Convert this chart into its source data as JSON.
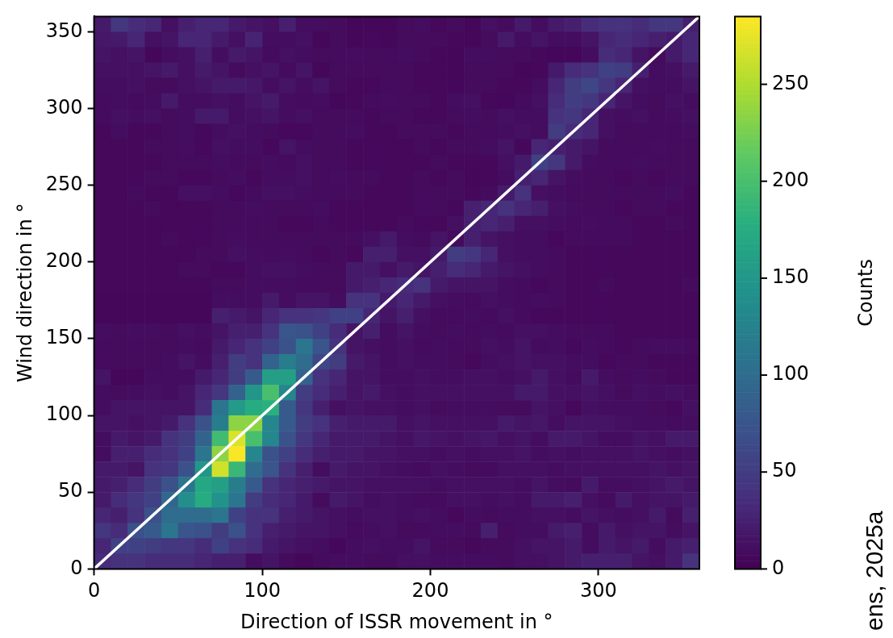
{
  "chart_data": {
    "type": "heatmap",
    "xlabel": "Direction of ISSR movement in °",
    "ylabel": "Wind direction in °",
    "clabel": "Counts",
    "xlim": [
      0,
      360
    ],
    "ylim": [
      0,
      360
    ],
    "xticks": [
      0,
      100,
      200,
      300
    ],
    "yticks": [
      0,
      50,
      100,
      150,
      200,
      250,
      300,
      350
    ],
    "clim": [
      0,
      285
    ],
    "cticks": [
      0,
      50,
      100,
      150,
      200,
      250
    ],
    "cells": [
      [
        20,
        45,
        35,
        30,
        12,
        25,
        30,
        30,
        20,
        15,
        12,
        25,
        10,
        10,
        8,
        5,
        5,
        5,
        8,
        10,
        6,
        8,
        5,
        12,
        8,
        20,
        10,
        20,
        25,
        35,
        40,
        40,
        35,
        45,
        45,
        25
      ],
      [
        18,
        20,
        30,
        12,
        15,
        30,
        30,
        20,
        12,
        28,
        10,
        10,
        12,
        5,
        8,
        5,
        6,
        5,
        8,
        8,
        8,
        6,
        5,
        8,
        20,
        10,
        15,
        10,
        10,
        15,
        30,
        35,
        30,
        25,
        20,
        30
      ],
      [
        15,
        12,
        15,
        5,
        10,
        12,
        25,
        10,
        20,
        15,
        8,
        12,
        10,
        8,
        8,
        10,
        8,
        8,
        10,
        8,
        6,
        5,
        10,
        10,
        8,
        8,
        6,
        5,
        5,
        10,
        35,
        30,
        15,
        8,
        20,
        30
      ],
      [
        12,
        12,
        12,
        15,
        20,
        12,
        20,
        15,
        8,
        12,
        15,
        8,
        15,
        5,
        8,
        8,
        8,
        8,
        8,
        6,
        6,
        5,
        8,
        8,
        8,
        5,
        6,
        20,
        35,
        40,
        55,
        50,
        25,
        10,
        12,
        20
      ],
      [
        10,
        10,
        12,
        8,
        8,
        12,
        15,
        20,
        20,
        18,
        10,
        15,
        10,
        15,
        8,
        6,
        6,
        8,
        8,
        6,
        6,
        5,
        8,
        8,
        6,
        6,
        10,
        30,
        50,
        60,
        45,
        30,
        12,
        10,
        10,
        15
      ],
      [
        8,
        10,
        8,
        10,
        20,
        10,
        10,
        12,
        10,
        15,
        20,
        10,
        8,
        10,
        5,
        6,
        8,
        10,
        8,
        8,
        6,
        10,
        12,
        6,
        5,
        8,
        12,
        35,
        50,
        45,
        30,
        15,
        10,
        8,
        12,
        10
      ],
      [
        8,
        12,
        10,
        12,
        8,
        10,
        20,
        20,
        10,
        12,
        15,
        10,
        12,
        8,
        8,
        8,
        6,
        8,
        8,
        6,
        6,
        8,
        10,
        8,
        12,
        10,
        10,
        40,
        45,
        30,
        12,
        10,
        12,
        8,
        10,
        12
      ],
      [
        6,
        10,
        6,
        6,
        8,
        10,
        6,
        10,
        12,
        10,
        8,
        6,
        6,
        8,
        8,
        10,
        6,
        6,
        8,
        8,
        8,
        6,
        8,
        8,
        10,
        12,
        10,
        50,
        35,
        30,
        12,
        8,
        8,
        8,
        8,
        10
      ],
      [
        6,
        6,
        6,
        8,
        8,
        10,
        6,
        12,
        10,
        10,
        6,
        15,
        10,
        8,
        8,
        6,
        6,
        6,
        6,
        8,
        6,
        8,
        8,
        10,
        15,
        6,
        30,
        25,
        20,
        15,
        8,
        8,
        8,
        10,
        8,
        8
      ],
      [
        6,
        6,
        6,
        6,
        8,
        8,
        8,
        10,
        8,
        8,
        10,
        8,
        12,
        8,
        8,
        6,
        6,
        6,
        6,
        6,
        8,
        6,
        6,
        6,
        12,
        20,
        55,
        45,
        20,
        10,
        8,
        8,
        10,
        8,
        8,
        8
      ],
      [
        6,
        6,
        6,
        8,
        8,
        6,
        6,
        8,
        10,
        6,
        10,
        10,
        12,
        8,
        10,
        8,
        8,
        6,
        6,
        8,
        6,
        8,
        5,
        6,
        10,
        25,
        30,
        15,
        10,
        8,
        8,
        6,
        8,
        6,
        8,
        8
      ],
      [
        6,
        6,
        8,
        6,
        6,
        12,
        12,
        10,
        6,
        8,
        12,
        12,
        10,
        8,
        8,
        8,
        6,
        6,
        6,
        8,
        8,
        8,
        6,
        8,
        20,
        40,
        12,
        10,
        8,
        8,
        8,
        8,
        8,
        8,
        10,
        6
      ],
      [
        6,
        6,
        6,
        8,
        6,
        6,
        6,
        8,
        8,
        10,
        8,
        8,
        8,
        10,
        6,
        6,
        6,
        6,
        6,
        8,
        8,
        6,
        25,
        30,
        40,
        30,
        25,
        12,
        10,
        8,
        8,
        6,
        8,
        8,
        6,
        6
      ],
      [
        6,
        6,
        6,
        6,
        6,
        6,
        6,
        8,
        8,
        8,
        8,
        6,
        6,
        8,
        6,
        6,
        6,
        6,
        8,
        6,
        6,
        12,
        25,
        30,
        25,
        12,
        12,
        10,
        8,
        10,
        8,
        8,
        6,
        6,
        8,
        6
      ],
      [
        6,
        6,
        6,
        6,
        8,
        6,
        6,
        8,
        10,
        8,
        8,
        8,
        8,
        8,
        8,
        8,
        12,
        20,
        10,
        8,
        15,
        8,
        25,
        15,
        12,
        10,
        10,
        6,
        8,
        8,
        8,
        8,
        6,
        6,
        6,
        6
      ],
      [
        6,
        6,
        6,
        6,
        6,
        6,
        8,
        8,
        12,
        10,
        8,
        10,
        8,
        6,
        8,
        6,
        25,
        25,
        12,
        12,
        20,
        50,
        45,
        30,
        12,
        10,
        10,
        8,
        6,
        6,
        6,
        6,
        6,
        6,
        6,
        6
      ],
      [
        6,
        6,
        6,
        6,
        6,
        8,
        8,
        6,
        6,
        10,
        12,
        12,
        10,
        8,
        8,
        20,
        20,
        12,
        20,
        15,
        25,
        35,
        30,
        20,
        15,
        12,
        10,
        8,
        6,
        6,
        6,
        6,
        6,
        6,
        6,
        6
      ],
      [
        6,
        6,
        6,
        6,
        6,
        6,
        6,
        8,
        8,
        10,
        10,
        10,
        8,
        8,
        8,
        20,
        25,
        30,
        35,
        40,
        20,
        15,
        15,
        15,
        10,
        8,
        6,
        8,
        6,
        6,
        8,
        6,
        6,
        6,
        6,
        8
      ],
      [
        5,
        5,
        5,
        5,
        5,
        5,
        5,
        10,
        10,
        10,
        20,
        10,
        15,
        15,
        10,
        40,
        40,
        20,
        30,
        20,
        12,
        10,
        8,
        12,
        10,
        8,
        10,
        8,
        6,
        6,
        6,
        6,
        6,
        6,
        6,
        6
      ],
      [
        5,
        5,
        5,
        5,
        5,
        5,
        5,
        25,
        20,
        15,
        30,
        40,
        40,
        45,
        55,
        55,
        30,
        15,
        25,
        12,
        8,
        8,
        10,
        8,
        12,
        8,
        6,
        6,
        6,
        6,
        6,
        6,
        6,
        6,
        6,
        6
      ],
      [
        10,
        8,
        10,
        10,
        8,
        12,
        10,
        15,
        25,
        25,
        40,
        75,
        70,
        55,
        35,
        15,
        25,
        10,
        15,
        10,
        8,
        10,
        8,
        10,
        8,
        12,
        12,
        10,
        8,
        8,
        8,
        6,
        6,
        6,
        6,
        6
      ],
      [
        8,
        8,
        8,
        8,
        8,
        10,
        8,
        20,
        30,
        40,
        55,
        70,
        110,
        75,
        40,
        15,
        12,
        10,
        12,
        8,
        10,
        8,
        8,
        12,
        10,
        15,
        8,
        10,
        6,
        10,
        8,
        6,
        8,
        10,
        10,
        8
      ],
      [
        8,
        8,
        8,
        8,
        10,
        15,
        10,
        25,
        50,
        40,
        90,
        120,
        100,
        60,
        50,
        20,
        15,
        10,
        12,
        10,
        10,
        8,
        6,
        10,
        12,
        15,
        12,
        12,
        10,
        10,
        6,
        8,
        8,
        6,
        6,
        6
      ],
      [
        15,
        5,
        5,
        10,
        10,
        10,
        20,
        30,
        50,
        80,
        160,
        160,
        90,
        40,
        30,
        15,
        15,
        10,
        10,
        12,
        10,
        10,
        12,
        12,
        10,
        12,
        20,
        12,
        8,
        20,
        10,
        8,
        10,
        8,
        6,
        6
      ],
      [
        10,
        8,
        10,
        12,
        10,
        15,
        30,
        45,
        90,
        150,
        200,
        130,
        50,
        35,
        25,
        15,
        20,
        12,
        10,
        12,
        12,
        12,
        12,
        12,
        12,
        20,
        20,
        12,
        12,
        15,
        12,
        8,
        12,
        10,
        12,
        10
      ],
      [
        10,
        15,
        15,
        15,
        15,
        15,
        35,
        110,
        155,
        175,
        180,
        80,
        45,
        25,
        12,
        15,
        12,
        12,
        10,
        12,
        8,
        10,
        10,
        10,
        8,
        8,
        15,
        12,
        6,
        12,
        10,
        10,
        10,
        8,
        6,
        12
      ],
      [
        15,
        15,
        12,
        15,
        20,
        40,
        70,
        120,
        235,
        235,
        130,
        80,
        50,
        40,
        25,
        20,
        20,
        20,
        12,
        15,
        12,
        12,
        12,
        12,
        20,
        15,
        18,
        10,
        15,
        15,
        15,
        12,
        10,
        10,
        8,
        10
      ],
      [
        10,
        20,
        15,
        20,
        40,
        50,
        90,
        195,
        270,
        200,
        130,
        70,
        45,
        30,
        20,
        20,
        20,
        15,
        12,
        18,
        15,
        12,
        15,
        18,
        12,
        15,
        10,
        20,
        20,
        15,
        10,
        10,
        15,
        12,
        20,
        20
      ],
      [
        10,
        25,
        25,
        35,
        40,
        55,
        110,
        235,
        283,
        130,
        70,
        55,
        35,
        25,
        20,
        20,
        15,
        15,
        12,
        12,
        10,
        12,
        10,
        12,
        12,
        15,
        10,
        12,
        10,
        12,
        12,
        12,
        15,
        12,
        10,
        12
      ],
      [
        20,
        20,
        15,
        40,
        45,
        70,
        150,
        265,
        190,
        100,
        75,
        40,
        25,
        10,
        20,
        15,
        15,
        12,
        10,
        8,
        12,
        10,
        8,
        8,
        12,
        12,
        12,
        10,
        12,
        12,
        12,
        12,
        12,
        15,
        12,
        15
      ],
      [
        20,
        25,
        35,
        50,
        70,
        110,
        170,
        160,
        120,
        80,
        40,
        30,
        25,
        20,
        15,
        15,
        12,
        12,
        12,
        12,
        10,
        12,
        12,
        12,
        12,
        10,
        15,
        10,
        8,
        20,
        10,
        10,
        12,
        15,
        20,
        15
      ],
      [
        20,
        35,
        45,
        55,
        95,
        140,
        175,
        145,
        110,
        50,
        35,
        30,
        20,
        8,
        20,
        15,
        10,
        12,
        10,
        8,
        8,
        12,
        12,
        10,
        12,
        10,
        20,
        20,
        25,
        12,
        8,
        20,
        12,
        15,
        15,
        20
      ],
      [
        30,
        25,
        40,
        70,
        100,
        100,
        100,
        110,
        55,
        40,
        40,
        25,
        20,
        15,
        12,
        10,
        12,
        12,
        10,
        12,
        10,
        6,
        10,
        8,
        10,
        10,
        12,
        12,
        10,
        15,
        12,
        10,
        12,
        20,
        8,
        25
      ],
      [
        45,
        35,
        70,
        80,
        110,
        75,
        70,
        50,
        70,
        40,
        25,
        20,
        15,
        15,
        12,
        8,
        10,
        12,
        8,
        8,
        10,
        10,
        8,
        25,
        8,
        10,
        10,
        20,
        25,
        10,
        20,
        12,
        15,
        15,
        10,
        15
      ],
      [
        30,
        55,
        55,
        50,
        45,
        45,
        35,
        55,
        40,
        35,
        20,
        15,
        12,
        10,
        5,
        10,
        12,
        10,
        10,
        15,
        8,
        8,
        6,
        8,
        8,
        12,
        15,
        15,
        20,
        10,
        20,
        15,
        20,
        10,
        20,
        25
      ],
      [
        35,
        40,
        40,
        35,
        35,
        35,
        30,
        25,
        25,
        10,
        15,
        8,
        5,
        8,
        10,
        10,
        8,
        8,
        12,
        12,
        10,
        10,
        10,
        10,
        8,
        12,
        12,
        15,
        20,
        25,
        25,
        25,
        15,
        12,
        20,
        40
      ]
    ],
    "series": [
      {
        "type": "line",
        "x": [
          0,
          360
        ],
        "values": [
          0,
          360
        ],
        "color": "#ffffff"
      }
    ],
    "annotations": [
      "ens, 2025a"
    ]
  }
}
